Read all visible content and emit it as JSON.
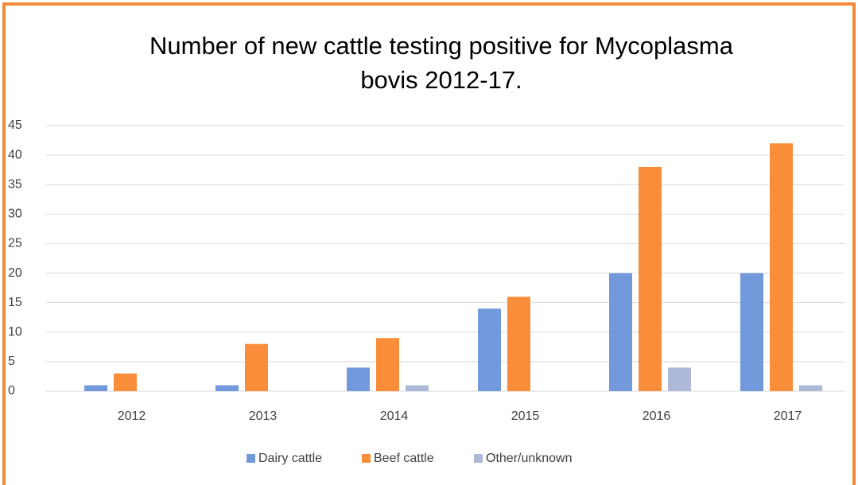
{
  "chart_data": {
    "type": "bar",
    "title": [
      "Number of new cattle testing positive for Mycoplasma",
      "bovis 2012-17."
    ],
    "categories": [
      "2012",
      "2013",
      "2014",
      "2015",
      "2016",
      "2017"
    ],
    "series": [
      {
        "name": "Dairy cattle",
        "color": "#7399dd",
        "values": [
          1,
          1,
          4,
          14,
          20,
          20
        ]
      },
      {
        "name": "Beef cattle",
        "color": "#fa8d3a",
        "values": [
          3,
          8,
          9,
          16,
          38,
          42
        ]
      },
      {
        "name": "Other/unknown",
        "color": "#adb9d6",
        "values": [
          0,
          0,
          1,
          0,
          4,
          1
        ]
      }
    ],
    "ylim": [
      0,
      45
    ],
    "yticks": [
      0,
      5,
      10,
      15,
      20,
      25,
      30,
      35,
      40,
      45
    ],
    "grid": true,
    "legend": "bottom"
  }
}
